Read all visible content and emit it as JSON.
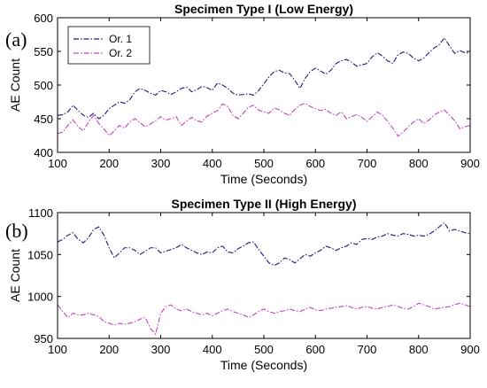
{
  "chart_data": [
    {
      "type": "line",
      "panel_tag": "(a)",
      "title": "Specimen Type I (Low Energy)",
      "xlabel": "Time (Seconds)",
      "ylabel": "AE Count",
      "xlim": [
        100,
        900
      ],
      "ylim": [
        400,
        600
      ],
      "xticks": [
        100,
        200,
        300,
        400,
        500,
        600,
        700,
        800,
        900
      ],
      "yticks": [
        400,
        450,
        500,
        550,
        600
      ],
      "grid": false,
      "legend": "top-left",
      "series": [
        {
          "name": "Or. 1",
          "color": "#1a1a80",
          "x": [
            100,
            110,
            120,
            130,
            140,
            150,
            160,
            170,
            180,
            190,
            200,
            210,
            220,
            230,
            240,
            250,
            260,
            270,
            280,
            290,
            300,
            310,
            320,
            330,
            340,
            350,
            360,
            370,
            380,
            390,
            400,
            410,
            420,
            430,
            440,
            450,
            460,
            470,
            480,
            490,
            500,
            510,
            520,
            530,
            540,
            550,
            560,
            570,
            580,
            590,
            600,
            610,
            620,
            630,
            640,
            650,
            660,
            670,
            680,
            690,
            700,
            710,
            720,
            730,
            740,
            750,
            760,
            770,
            780,
            790,
            800,
            810,
            820,
            830,
            840,
            850,
            860,
            870,
            880,
            890,
            900
          ],
          "y": [
            455,
            456,
            460,
            470,
            462,
            455,
            452,
            458,
            450,
            455,
            465,
            470,
            475,
            473,
            478,
            490,
            495,
            492,
            488,
            485,
            492,
            490,
            486,
            490,
            495,
            497,
            490,
            493,
            498,
            496,
            492,
            503,
            500,
            495,
            488,
            485,
            486,
            487,
            485,
            492,
            502,
            512,
            520,
            522,
            518,
            517,
            507,
            495,
            510,
            520,
            525,
            521,
            516,
            522,
            532,
            536,
            538,
            534,
            528,
            530,
            532,
            542,
            548,
            543,
            536,
            532,
            545,
            549,
            547,
            540,
            536,
            540,
            548,
            555,
            560,
            570,
            558,
            547,
            551,
            548,
            548
          ]
        },
        {
          "name": "Or. 2",
          "color": "#c040c0",
          "x": [
            100,
            110,
            120,
            130,
            140,
            150,
            160,
            170,
            180,
            190,
            200,
            210,
            220,
            230,
            240,
            250,
            260,
            270,
            280,
            290,
            300,
            310,
            320,
            330,
            340,
            350,
            360,
            370,
            380,
            390,
            400,
            410,
            420,
            430,
            440,
            450,
            460,
            470,
            480,
            490,
            500,
            510,
            520,
            530,
            540,
            550,
            560,
            570,
            580,
            590,
            600,
            610,
            620,
            630,
            640,
            650,
            660,
            670,
            680,
            690,
            700,
            710,
            720,
            730,
            740,
            750,
            760,
            770,
            780,
            790,
            800,
            810,
            820,
            830,
            840,
            850,
            860,
            870,
            880,
            890,
            900
          ],
          "y": [
            428,
            430,
            440,
            448,
            438,
            432,
            445,
            455,
            443,
            435,
            425,
            432,
            440,
            436,
            445,
            450,
            444,
            438,
            442,
            447,
            453,
            448,
            450,
            453,
            440,
            446,
            452,
            447,
            445,
            454,
            458,
            462,
            472,
            468,
            455,
            450,
            458,
            467,
            470,
            463,
            460,
            458,
            466,
            463,
            458,
            455,
            464,
            470,
            473,
            468,
            465,
            462,
            464,
            458,
            455,
            460,
            450,
            453,
            456,
            452,
            446,
            453,
            460,
            455,
            446,
            436,
            424,
            430,
            438,
            445,
            450,
            443,
            448,
            455,
            460,
            463,
            455,
            447,
            435,
            438,
            440
          ]
        }
      ]
    },
    {
      "type": "line",
      "panel_tag": "(b)",
      "title": "Specimen Type II (High Energy)",
      "xlabel": "Time (Seconds)",
      "ylabel": "AE Count",
      "xlim": [
        100,
        900
      ],
      "ylim": [
        950,
        1100
      ],
      "xticks": [
        100,
        200,
        300,
        400,
        500,
        600,
        700,
        800,
        900
      ],
      "yticks": [
        950,
        1000,
        1050,
        1100
      ],
      "grid": false,
      "series": [
        {
          "name": "Or. 1",
          "color": "#1a1a80",
          "x": [
            100,
            110,
            120,
            130,
            140,
            150,
            160,
            170,
            180,
            190,
            200,
            210,
            220,
            230,
            240,
            250,
            260,
            270,
            280,
            290,
            300,
            310,
            320,
            330,
            340,
            350,
            360,
            370,
            380,
            390,
            400,
            410,
            420,
            430,
            440,
            450,
            460,
            470,
            480,
            490,
            500,
            510,
            520,
            530,
            540,
            550,
            560,
            570,
            580,
            590,
            600,
            610,
            620,
            630,
            640,
            650,
            660,
            670,
            680,
            690,
            700,
            710,
            720,
            730,
            740,
            750,
            760,
            770,
            780,
            790,
            800,
            810,
            820,
            830,
            840,
            850,
            860,
            870,
            880,
            890,
            900
          ],
          "y": [
            1065,
            1068,
            1073,
            1076,
            1068,
            1064,
            1070,
            1080,
            1083,
            1073,
            1058,
            1046,
            1052,
            1058,
            1058,
            1055,
            1050,
            1054,
            1058,
            1058,
            1052,
            1054,
            1056,
            1058,
            1062,
            1058,
            1055,
            1052,
            1050,
            1053,
            1052,
            1058,
            1060,
            1053,
            1052,
            1057,
            1060,
            1064,
            1065,
            1056,
            1048,
            1040,
            1037,
            1040,
            1046,
            1044,
            1040,
            1045,
            1050,
            1048,
            1052,
            1055,
            1060,
            1058,
            1055,
            1058,
            1060,
            1064,
            1062,
            1068,
            1069,
            1068,
            1071,
            1072,
            1075,
            1073,
            1072,
            1075,
            1074,
            1072,
            1073,
            1072,
            1074,
            1078,
            1083,
            1088,
            1078,
            1080,
            1078,
            1076,
            1075
          ]
        },
        {
          "name": "Or. 2",
          "color": "#c040c0",
          "x": [
            100,
            110,
            120,
            130,
            140,
            150,
            160,
            170,
            180,
            190,
            200,
            210,
            220,
            230,
            240,
            250,
            260,
            270,
            280,
            290,
            300,
            310,
            320,
            330,
            340,
            350,
            360,
            370,
            380,
            390,
            400,
            410,
            420,
            430,
            440,
            450,
            460,
            470,
            480,
            490,
            500,
            510,
            520,
            530,
            540,
            550,
            560,
            570,
            580,
            590,
            600,
            610,
            620,
            630,
            640,
            650,
            660,
            670,
            680,
            690,
            700,
            710,
            720,
            730,
            740,
            750,
            760,
            770,
            780,
            790,
            800,
            810,
            820,
            830,
            840,
            850,
            860,
            870,
            880,
            890,
            900
          ],
          "y": [
            990,
            982,
            975,
            980,
            978,
            978,
            980,
            978,
            976,
            970,
            968,
            966,
            968,
            967,
            968,
            970,
            973,
            975,
            962,
            955,
            980,
            988,
            990,
            985,
            983,
            985,
            982,
            980,
            978,
            980,
            977,
            980,
            983,
            985,
            982,
            980,
            978,
            975,
            978,
            982,
            985,
            982,
            980,
            982,
            983,
            985,
            983,
            982,
            985,
            987,
            984,
            983,
            985,
            986,
            987,
            988,
            989,
            987,
            985,
            987,
            988,
            986,
            985,
            987,
            988,
            990,
            988,
            986,
            985,
            988,
            992,
            990,
            988,
            985,
            986,
            987,
            988,
            990,
            992,
            990,
            988
          ]
        }
      ]
    }
  ]
}
